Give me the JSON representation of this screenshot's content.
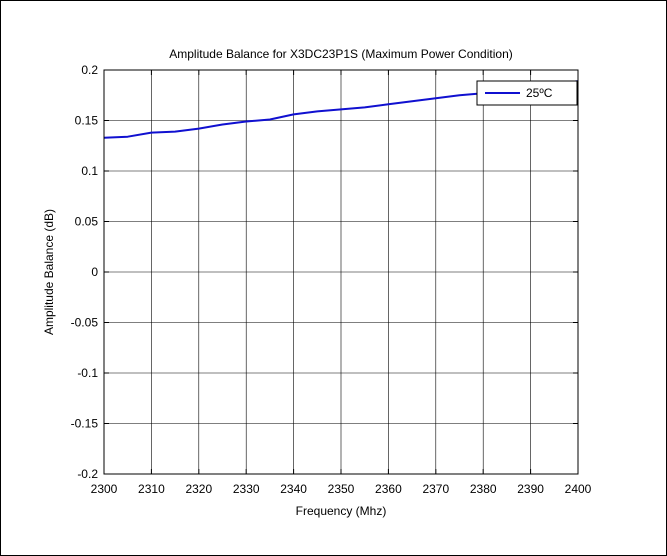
{
  "chart_data": {
    "type": "line",
    "title": "Amplitude Balance for X3DC23P1S (Maximum Power Condition)",
    "xlabel": "Frequency (Mhz)",
    "ylabel": "Amplitude Balance (dB)",
    "xlim": [
      2300,
      2400
    ],
    "ylim": [
      -0.2,
      0.2
    ],
    "xticks": [
      2300,
      2310,
      2320,
      2330,
      2340,
      2350,
      2360,
      2370,
      2380,
      2390,
      2400
    ],
    "yticks": [
      -0.2,
      -0.15,
      -0.1,
      -0.05,
      0,
      0.05,
      0.1,
      0.15,
      0.2
    ],
    "ytick_labels": [
      "-0.2",
      "-0.15",
      "-0.1",
      "-0.05",
      "0",
      "0.05",
      "0.1",
      "0.15",
      "0.2"
    ],
    "grid": true,
    "legend_position": "top-right",
    "series": [
      {
        "name": "25ºC",
        "color": "#1010d0",
        "x": [
          2300,
          2305,
          2310,
          2315,
          2320,
          2325,
          2330,
          2335,
          2340,
          2345,
          2350,
          2355,
          2360,
          2365,
          2370,
          2375,
          2380,
          2385,
          2390,
          2395,
          2400
        ],
        "y": [
          0.133,
          0.134,
          0.138,
          0.139,
          0.142,
          0.146,
          0.149,
          0.151,
          0.156,
          0.159,
          0.161,
          0.163,
          0.166,
          0.169,
          0.172,
          0.175,
          0.177,
          0.18,
          0.183,
          0.186,
          0.189
        ]
      }
    ]
  }
}
